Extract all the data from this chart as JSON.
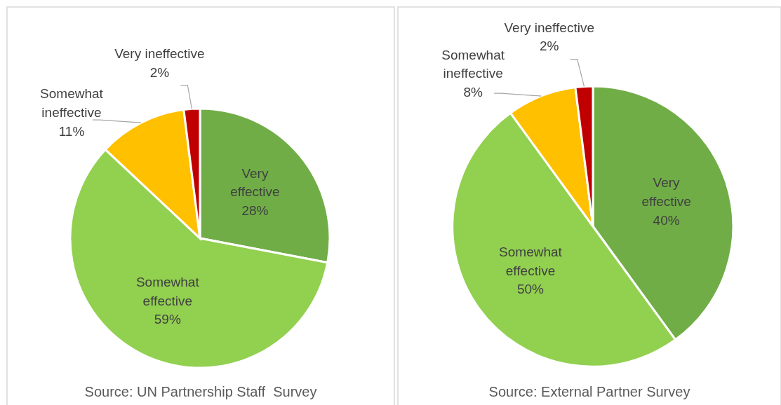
{
  "chart_data": [
    {
      "type": "pie",
      "categories": [
        "Very effective",
        "Somewhat effective",
        "Somewhat ineffective",
        "Very ineffective"
      ],
      "values": [
        28,
        59,
        11,
        2
      ],
      "value_labels": [
        "28%",
        "59%",
        "11%",
        "2%"
      ],
      "colors": [
        "#70ad47",
        "#92d050",
        "#ffc000",
        "#c00000"
      ],
      "annotations": [
        "Source: UN Partnership Staff  Survey"
      ]
    },
    {
      "type": "pie",
      "categories": [
        "Very effective",
        "Somewhat effective",
        "Somewhat ineffective",
        "Very ineffective"
      ],
      "values": [
        40,
        50,
        8,
        2
      ],
      "value_labels": [
        "40%",
        "50%",
        "8%",
        "2%"
      ],
      "colors": [
        "#70ad47",
        "#92d050",
        "#ffc000",
        "#c00000"
      ],
      "annotations": [
        "Source: External Partner Survey"
      ]
    }
  ]
}
